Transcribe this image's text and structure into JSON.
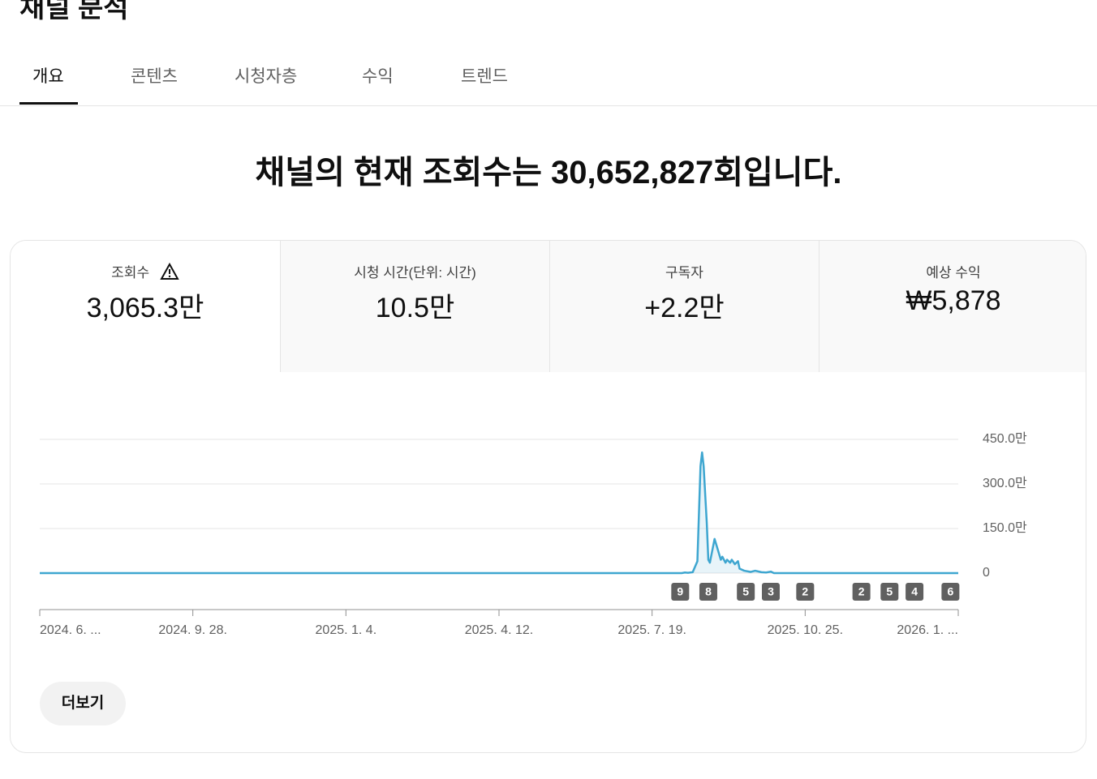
{
  "header": {
    "title": "채널 분석"
  },
  "tabs": [
    "개요",
    "콘텐츠",
    "시청자층",
    "수익",
    "트렌드"
  ],
  "headline": "채널의 현재 조회수는 30,652,827회입니다.",
  "metrics": [
    {
      "label": "조회수",
      "value": "3,065.3만"
    },
    {
      "label": "시청 시간(단위: 시간)",
      "value": "10.5만"
    },
    {
      "label": "구독자",
      "value": "+2.2만"
    },
    {
      "label": "예상 수익",
      "value": "₩5,878"
    }
  ],
  "chart_data": {
    "type": "line",
    "x": [
      0,
      411,
      413,
      415,
      418,
      421,
      423,
      424,
      425,
      427,
      428,
      429,
      432,
      434,
      436,
      437,
      439,
      440,
      442,
      443,
      445,
      447,
      448,
      451,
      455,
      458,
      462,
      465,
      468,
      470,
      588
    ],
    "series": [
      {
        "color": "#3ea6d0",
        "values": [
          0,
          0,
          2,
          1,
          3,
          40,
          360,
          406,
          360,
          170,
          45,
          35,
          115,
          80,
          45,
          55,
          35,
          45,
          35,
          45,
          30,
          40,
          15,
          8,
          4,
          8,
          3,
          2,
          5,
          0,
          0
        ]
      }
    ],
    "xlim": [
      0,
      588
    ],
    "xticks": [
      {
        "value": 0,
        "label": "2024. 6. ..."
      },
      {
        "value": 98,
        "label": "2024. 9. 28."
      },
      {
        "value": 196,
        "label": "2025. 1. 4."
      },
      {
        "value": 294,
        "label": "2025. 4. 12."
      },
      {
        "value": 392,
        "label": "2025. 7. 19."
      },
      {
        "value": 490,
        "label": "2025. 10. 25."
      },
      {
        "value": 588,
        "label": "2026. 1. ..."
      }
    ],
    "ylim": [
      0,
      450
    ],
    "yticks": [
      0,
      {
        "value": 150,
        "label": "150.0만"
      },
      {
        "value": 300,
        "label": "300.0만"
      },
      {
        "value": 450,
        "label": "450.0만"
      }
    ],
    "grid": true,
    "markers": {
      "x": [
        410,
        428,
        452,
        468,
        490,
        526,
        544,
        560,
        583
      ],
      "counts": [
        9,
        8,
        5,
        3,
        2,
        2,
        5,
        4,
        6
      ]
    }
  },
  "more_button": "더보기"
}
